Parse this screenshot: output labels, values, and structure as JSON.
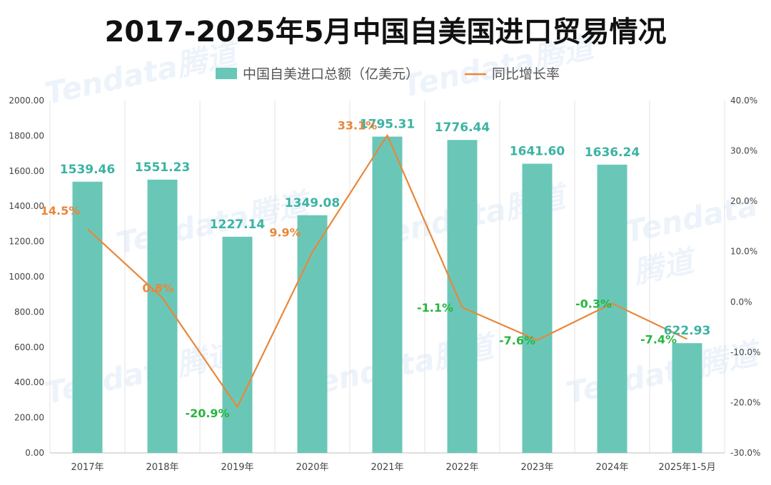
{
  "title": "2017-2025年5月中国自美国进口贸易情况",
  "watermark_text": "Tendata腾道",
  "colors": {
    "bar": "#6ac7b8",
    "line": "#e8873a",
    "bar_label": "#3bb3a2",
    "pos_label": "#e8873a",
    "neg_label": "#27b53f",
    "grid": "#e3e3e3",
    "axis_text": "#444444"
  },
  "chart_data": {
    "type": "bar",
    "title": "2017-2025年5月中国自美国进口贸易情况",
    "categories": [
      "2017年",
      "2018年",
      "2019年",
      "2020年",
      "2021年",
      "2022年",
      "2023年",
      "2024年",
      "2025年1-5月"
    ],
    "series": [
      {
        "name": "中国自美进口总额（亿美元）",
        "type": "bar",
        "axis": "left",
        "values": [
          1539.46,
          1551.23,
          1227.14,
          1349.08,
          1795.31,
          1776.44,
          1641.6,
          1636.24,
          622.93
        ],
        "labels": [
          "1539.46",
          "1551.23",
          "1227.14",
          "1349.08",
          "1795.31",
          "1776.44",
          "1641.60",
          "1636.24",
          "622.93"
        ]
      },
      {
        "name": "同比增长率",
        "type": "line",
        "axis": "right",
        "values": [
          14.5,
          0.8,
          -20.9,
          9.9,
          33.1,
          -1.1,
          -7.6,
          -0.3,
          -7.4
        ],
        "labels": [
          "14.5%",
          "0.8%",
          "-20.9%",
          "9.9%",
          "33.1%",
          "-1.1%",
          "-7.6%",
          "-0.3%",
          "-7.4%"
        ]
      }
    ],
    "y_left": {
      "min": 0,
      "max": 2000,
      "step": 200,
      "ticks": [
        "0.00",
        "200.00",
        "400.00",
        "600.00",
        "800.00",
        "1000.00",
        "1200.00",
        "1400.00",
        "1600.00",
        "1800.00",
        "2000.00"
      ]
    },
    "y_right": {
      "min": -30,
      "max": 40,
      "step": 10,
      "ticks": [
        "-30.0%",
        "-20.0%",
        "-10.0%",
        "0.0%",
        "10.0%",
        "20.0%",
        "30.0%",
        "40.0%"
      ]
    },
    "grid": "vertical",
    "legend_position": "top"
  }
}
